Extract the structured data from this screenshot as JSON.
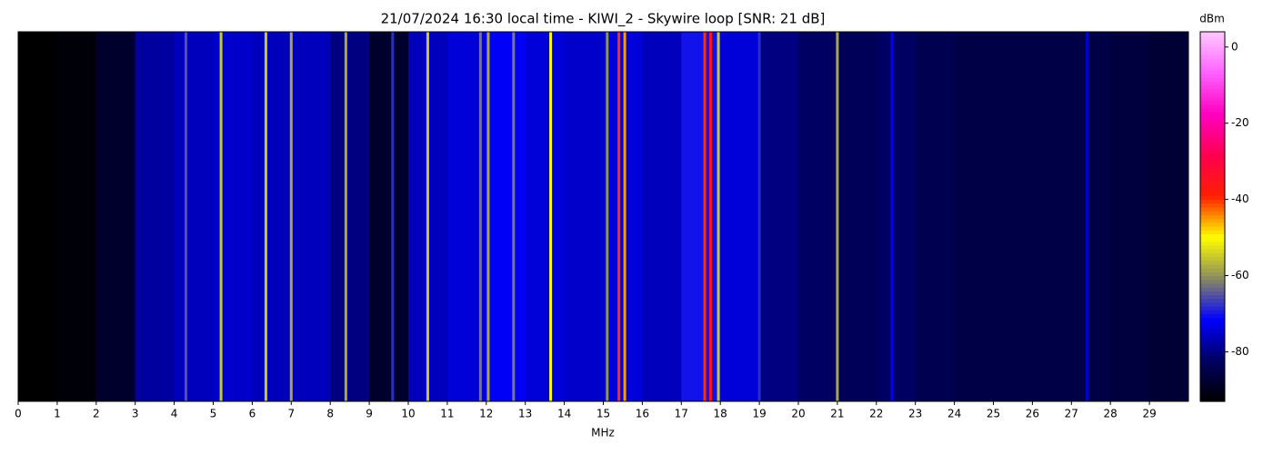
{
  "chart_data": {
    "type": "spectrogram",
    "title": "21/07/2024 16:30 local time - KIWI_2 - Skywire loop [SNR: 21 dB]",
    "xlabel": "MHz",
    "colorbar_label": "dBm",
    "xlim": [
      0,
      30
    ],
    "xticks": [
      0,
      1,
      2,
      3,
      4,
      5,
      6,
      7,
      8,
      9,
      10,
      11,
      12,
      13,
      14,
      15,
      16,
      17,
      18,
      19,
      20,
      21,
      22,
      23,
      24,
      25,
      26,
      27,
      28,
      29
    ],
    "clim": [
      -93,
      4
    ],
    "cticks": [
      0,
      -20,
      -40,
      -60,
      -80
    ],
    "colormap": [
      "#000000",
      "#000060",
      "#0000ff",
      "#8a8a60",
      "#ffff00",
      "#ff2000",
      "#ff0050",
      "#ff00c0",
      "#ff60ff",
      "#ffc8ff"
    ],
    "background": {
      "x": [
        0,
        1,
        2,
        3,
        4,
        5,
        6,
        7,
        8,
        9,
        10,
        11,
        12,
        13,
        14,
        15,
        16,
        17,
        18,
        19,
        20,
        21,
        22,
        23,
        24,
        25,
        26,
        27,
        28,
        29
      ],
      "values": [
        -93,
        -92,
        -88,
        -78,
        -76,
        -75,
        -76,
        -76,
        -80,
        -88,
        -76,
        -74,
        -72,
        -74,
        -75,
        -74,
        -76,
        -70,
        -74,
        -80,
        -82,
        -83,
        -82,
        -84,
        -85,
        -85,
        -85,
        -85,
        -86,
        -87
      ]
    },
    "signals": {
      "x": [
        4.3,
        5.2,
        6.35,
        7.0,
        8.4,
        9.6,
        10.5,
        11.85,
        12.05,
        12.7,
        13.65,
        15.1,
        15.4,
        15.55,
        17.6,
        17.75,
        17.95,
        19.0,
        21.0,
        22.4,
        27.4
      ],
      "values": [
        -65,
        -55,
        -55,
        -58,
        -58,
        -68,
        -55,
        -62,
        -58,
        -62,
        -50,
        -60,
        -40,
        -45,
        -40,
        -35,
        -55,
        -68,
        -58,
        -72,
        -75
      ]
    }
  }
}
